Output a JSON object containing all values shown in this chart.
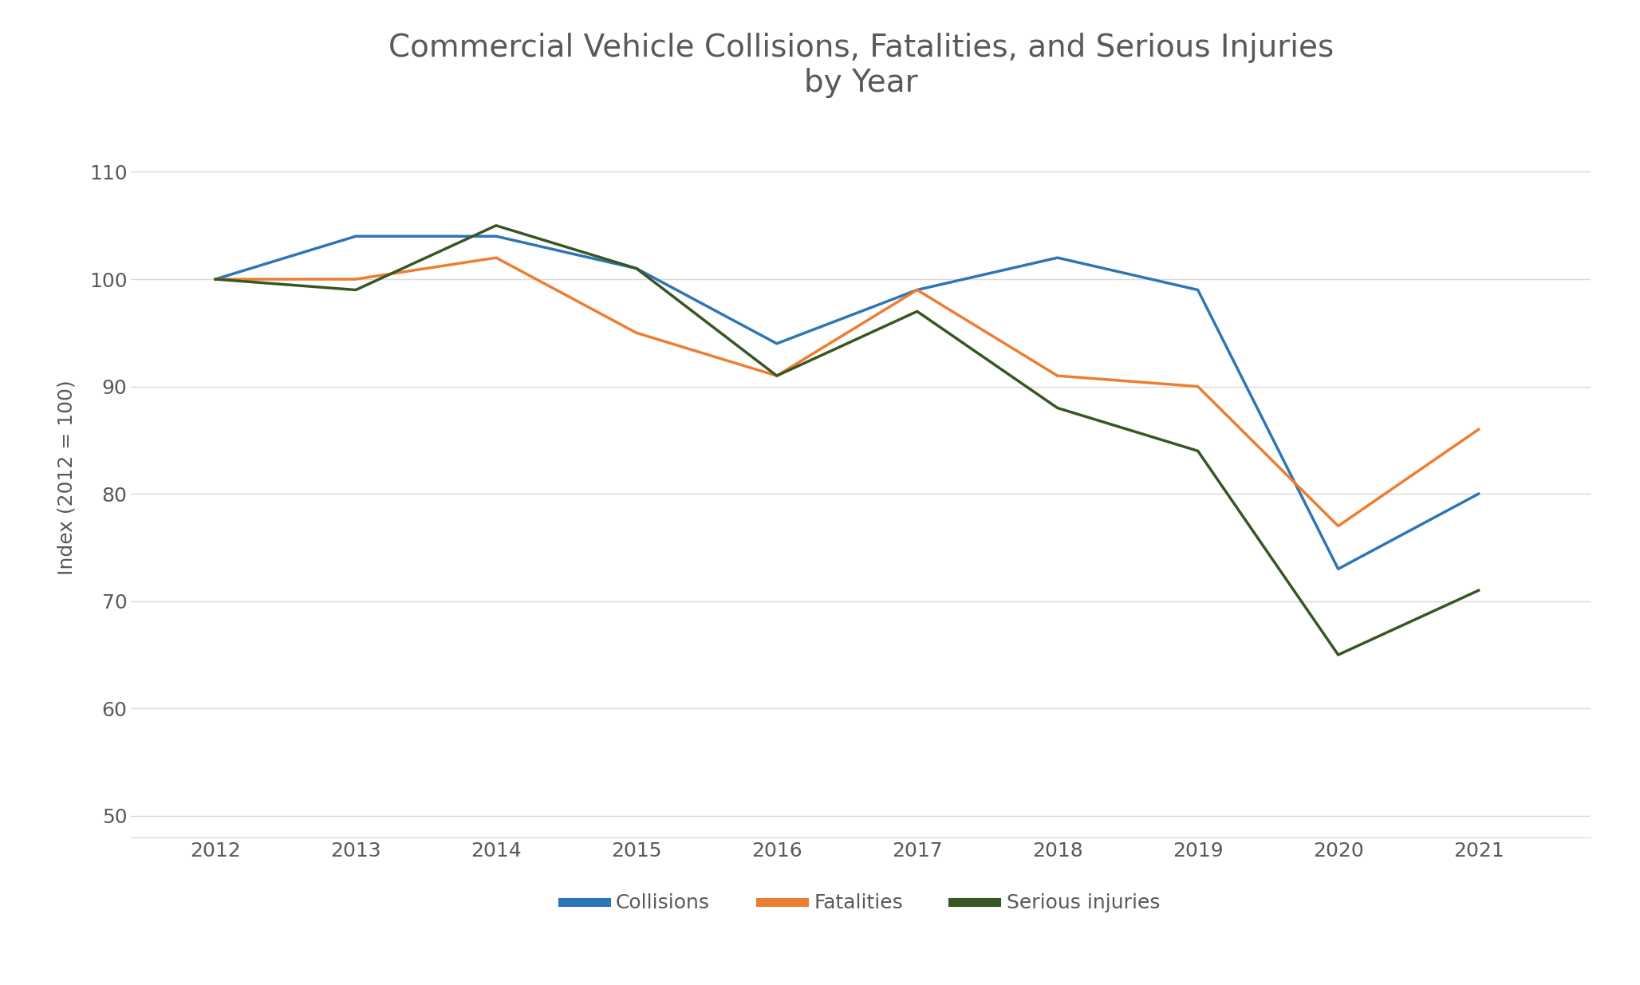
{
  "title": "Commercial Vehicle Collisions, Fatalities, and Serious Injuries\nby Year",
  "ylabel": "Index (2012 = 100)",
  "years": [
    2012,
    2013,
    2014,
    2015,
    2016,
    2017,
    2018,
    2019,
    2020,
    2021
  ],
  "collisions": [
    100,
    104,
    104,
    101,
    94,
    99,
    102,
    99,
    73,
    80
  ],
  "fatalities": [
    100,
    100,
    102,
    95,
    91,
    99,
    91,
    90,
    77,
    86
  ],
  "serious_injuries": [
    100,
    99,
    105,
    101,
    91,
    97,
    88,
    84,
    65,
    71
  ],
  "line_colors": {
    "collisions": "#2E75B6",
    "fatalities": "#ED7D31",
    "serious_injuries": "#375623"
  },
  "legend_labels": [
    "Collisions",
    "Fatalities",
    "Serious injuries"
  ],
  "ylim": [
    48,
    115
  ],
  "yticks": [
    50,
    60,
    70,
    80,
    90,
    100,
    110
  ],
  "background_color": "#ffffff",
  "title_fontsize": 28,
  "axis_label_fontsize": 18,
  "tick_fontsize": 18,
  "legend_fontsize": 18,
  "line_width": 2.5,
  "grid_color": "#d9d9d9",
  "text_color": "#595959"
}
